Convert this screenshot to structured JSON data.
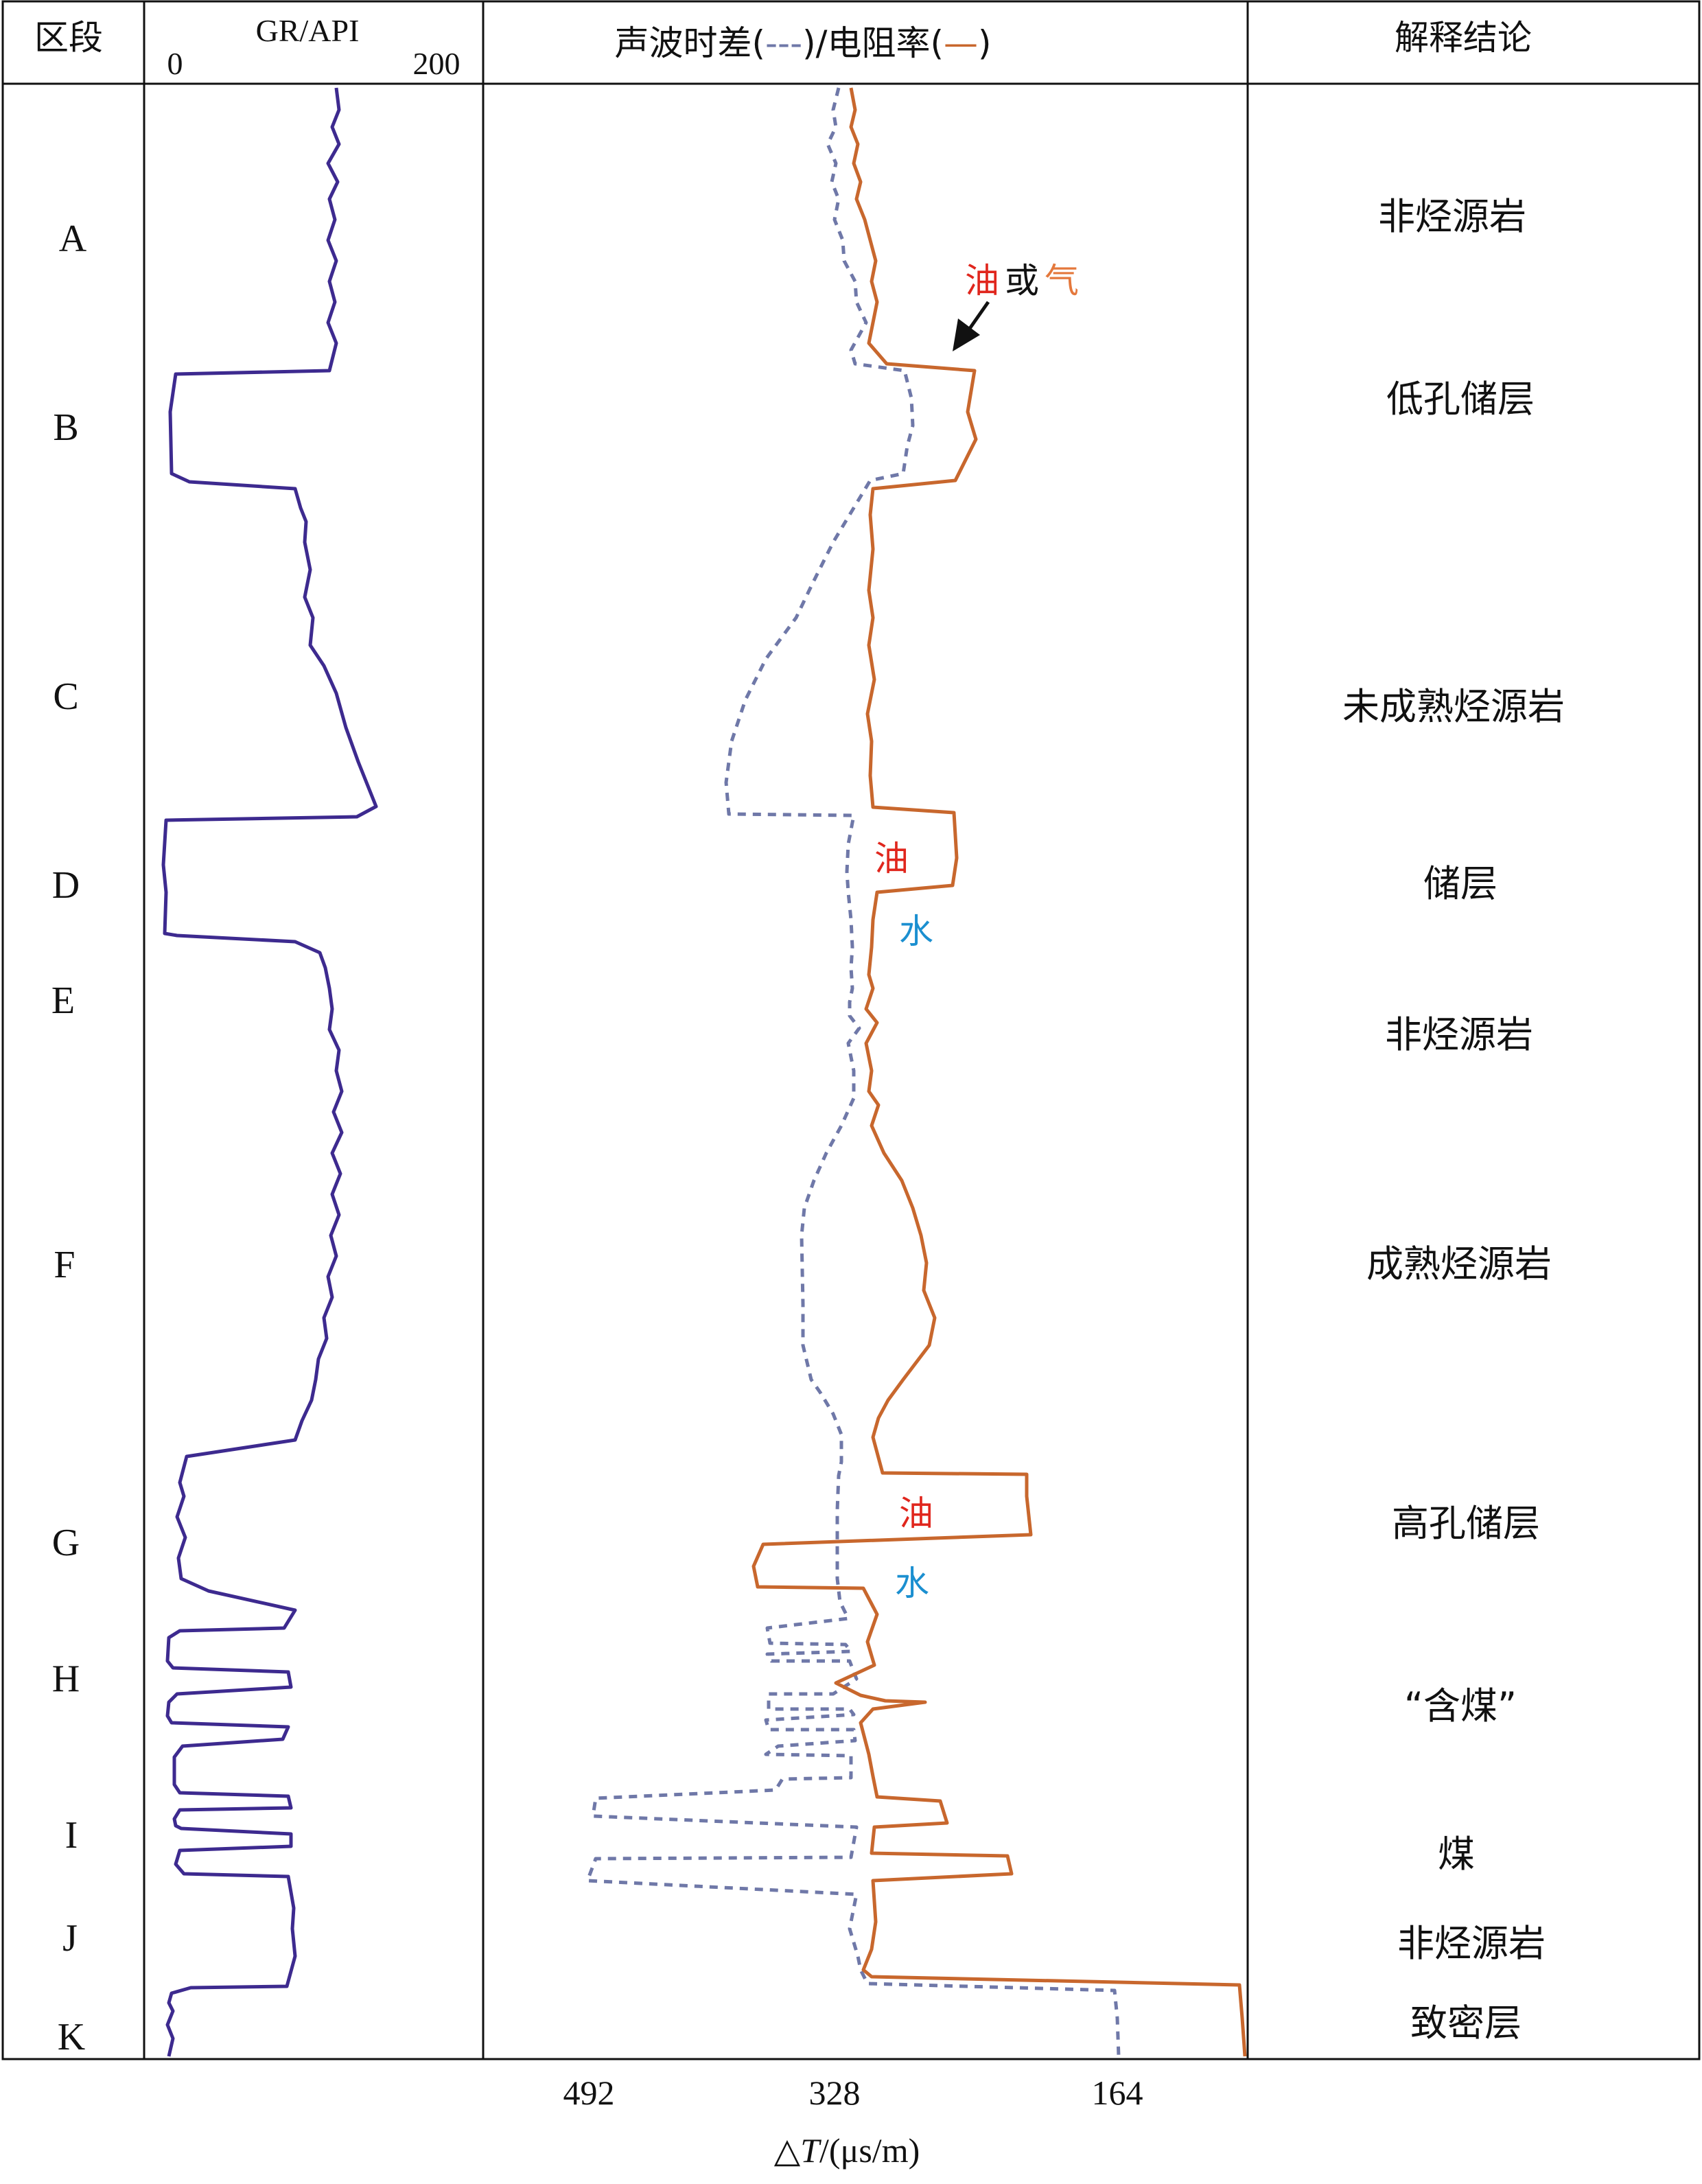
{
  "headers": {
    "segment": "区段",
    "gr_title": "GR/API",
    "gr_min": "0",
    "gr_max": "200",
    "curves_title_pre": "声波时差(",
    "curves_title_dash": "---",
    "curves_title_mid": ")/电阻率(",
    "curves_title_solid": "—",
    "curves_title_end": ")",
    "conclusion": "解释结论"
  },
  "segments": [
    "A",
    "B",
    "C",
    "D",
    "E",
    "F",
    "G",
    "H",
    "I",
    "J",
    "K"
  ],
  "conclusions": [
    "非烃源岩",
    "低孔储层",
    "未成熟烃源岩",
    "储层",
    "非烃源岩",
    "成熟烃源岩",
    "高孔储层",
    "“含煤”",
    "煤",
    "非烃源岩",
    "致密层"
  ],
  "annotations": {
    "oil_or_gas_oil": "油",
    "oil_or_gas_or": "或",
    "oil_or_gas_gas": "气",
    "d_oil": "油",
    "d_water": "水",
    "g_oil": "油",
    "g_water": "水"
  },
  "dt_axis": {
    "ticks": [
      "492",
      "328",
      "164"
    ],
    "label_prefix": "△",
    "label_var": "T",
    "label_unit": "/(μs/m)"
  },
  "colors": {
    "gr": "#3d2a8f",
    "sonic": "#6f78a8",
    "resistivity": "#c8672d",
    "oil": "#e0261d",
    "water": "#1b8fd0",
    "gas": "#e4783c"
  }
}
